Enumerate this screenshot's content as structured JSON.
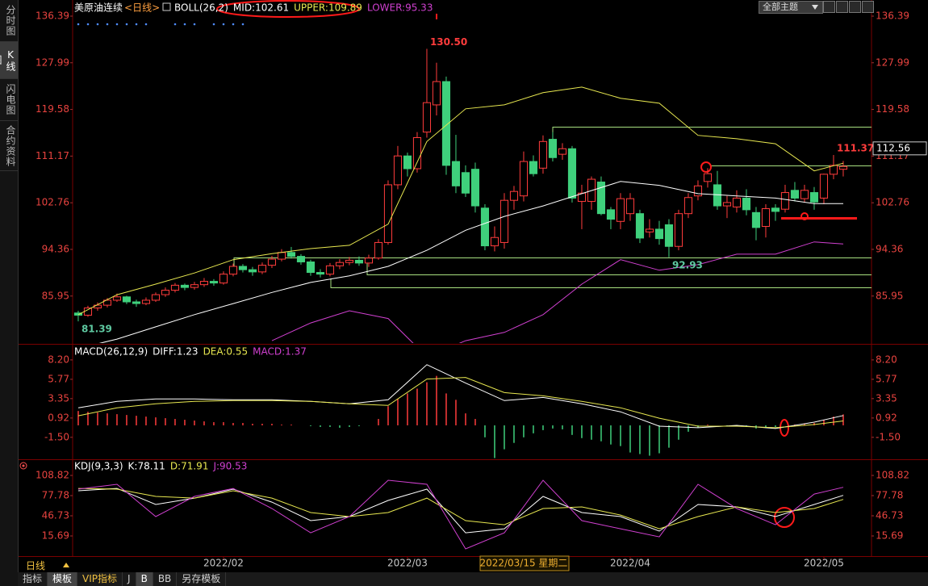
{
  "header": {
    "symbol": "美原油连续",
    "period": "<日线>",
    "theme_button": "全部主题"
  },
  "sidebar": [
    "分时图",
    "K线图",
    "闪电图",
    "合约资料"
  ],
  "footer": {
    "period": "日线",
    "tabs": [
      "指标",
      "模板",
      "VIP指标",
      "J",
      "B",
      "BB",
      "另存模板"
    ]
  },
  "chart_data": [
    {
      "type": "candlestick",
      "title": "BOLL(26,2)",
      "up_color": "#ff3c3c",
      "down_color": "#3fd07c",
      "xlim": [
        -0.58,
        81.92
      ],
      "xticks": [
        {
          "value": 15,
          "label": "2022/02"
        },
        {
          "value": 34,
          "label": "2022/03"
        },
        {
          "value": 57,
          "label": "2022/04"
        },
        {
          "value": 77,
          "label": "2022/05"
        }
      ],
      "cursor": {
        "x": 46,
        "label": "2022/03/15 星期二"
      },
      "ylim": [
        77.48,
        139.01
      ],
      "yticks": [
        136.39,
        127.99,
        119.58,
        111.17,
        102.76,
        94.36,
        85.95
      ],
      "last_price": 112.56,
      "ohlc": [
        [
          82.9,
          83.3,
          81.39,
          82.5
        ],
        [
          82.5,
          84.2,
          82.2,
          83.8
        ],
        [
          83.8,
          84.8,
          83.3,
          84.3
        ],
        [
          84.3,
          85.6,
          83.9,
          85.2
        ],
        [
          85.2,
          86.4,
          84.9,
          85.8
        ],
        [
          85.8,
          86.0,
          84.5,
          84.9
        ],
        [
          84.9,
          85.3,
          84.0,
          84.6
        ],
        [
          84.6,
          85.7,
          84.3,
          85.2
        ],
        [
          85.2,
          86.6,
          84.9,
          86.2
        ],
        [
          86.2,
          87.5,
          85.8,
          87.0
        ],
        [
          87.0,
          88.3,
          86.6,
          87.9
        ],
        [
          87.9,
          88.2,
          87.0,
          87.5
        ],
        [
          87.5,
          88.5,
          87.1,
          88.0
        ],
        [
          88.0,
          89.2,
          87.6,
          88.6
        ],
        [
          88.6,
          89.0,
          87.8,
          88.3
        ],
        [
          88.3,
          90.4,
          88.0,
          89.9
        ],
        [
          89.9,
          91.8,
          89.5,
          91.3
        ],
        [
          91.3,
          91.7,
          90.2,
          90.7
        ],
        [
          90.7,
          91.2,
          89.6,
          90.3
        ],
        [
          90.3,
          92.0,
          89.9,
          91.5
        ],
        [
          91.5,
          93.2,
          91.0,
          92.6
        ],
        [
          92.6,
          94.4,
          92.2,
          93.8
        ],
        [
          93.8,
          94.8,
          92.7,
          93.1
        ],
        [
          93.1,
          93.5,
          91.6,
          92.1
        ],
        [
          92.1,
          92.5,
          89.6,
          90.2
        ],
        [
          90.2,
          90.8,
          89.3,
          89.9
        ],
        [
          89.9,
          91.9,
          89.5,
          91.4
        ],
        [
          91.4,
          92.6,
          90.8,
          92.0
        ],
        [
          92.0,
          93.0,
          91.5,
          92.4
        ],
        [
          92.4,
          93.1,
          91.4,
          91.9
        ],
        [
          91.9,
          93.4,
          91.2,
          92.8
        ],
        [
          92.8,
          96.2,
          92.5,
          95.6
        ],
        [
          95.6,
          106.8,
          95.2,
          106.0
        ],
        [
          106.0,
          113.0,
          105.2,
          111.2
        ],
        [
          111.2,
          111.8,
          107.5,
          108.9
        ],
        [
          108.9,
          115.5,
          108.2,
          114.5
        ],
        [
          115.5,
          130.5,
          114.5,
          120.8
        ],
        [
          120.4,
          128.0,
          118.5,
          124.6
        ],
        [
          124.6,
          125.5,
          107.8,
          109.5
        ],
        [
          110.2,
          115.0,
          104.5,
          105.8
        ],
        [
          108.2,
          109.5,
          103.8,
          104.5
        ],
        [
          108.8,
          110.0,
          101.0,
          102.2
        ],
        [
          101.8,
          102.5,
          94.2,
          95.0
        ],
        [
          95.0,
          98.5,
          94.0,
          96.5
        ],
        [
          95.6,
          104.5,
          94.5,
          103.2
        ],
        [
          103.2,
          105.8,
          101.5,
          104.8
        ],
        [
          104.0,
          112.0,
          103.0,
          110.2
        ],
        [
          110.2,
          111.3,
          107.5,
          108.0
        ],
        [
          109.0,
          114.9,
          108.0,
          113.8
        ],
        [
          114.2,
          115.5,
          110.2,
          110.9
        ],
        [
          111.5,
          113.5,
          110.5,
          112.5
        ],
        [
          112.5,
          113.0,
          102.8,
          103.6
        ],
        [
          103.0,
          106.0,
          98.0,
          104.5
        ],
        [
          103.0,
          107.5,
          101.5,
          107.0
        ],
        [
          106.5,
          107.5,
          100.5,
          100.8
        ],
        [
          101.5,
          102.0,
          98.0,
          99.8
        ],
        [
          99.4,
          104.5,
          98.0,
          103.5
        ],
        [
          100.8,
          104.5,
          99.5,
          103.5
        ],
        [
          100.8,
          101.5,
          95.5,
          96.4
        ],
        [
          97.5,
          99.8,
          96.5,
          98.0
        ],
        [
          98.0,
          99.5,
          95.2,
          96.3
        ],
        [
          98.8,
          99.8,
          92.93,
          94.9
        ],
        [
          94.9,
          101.5,
          94.2,
          100.8
        ],
        [
          100.8,
          104.5,
          100.0,
          103.7
        ],
        [
          104.0,
          106.8,
          103.2,
          105.8
        ],
        [
          106.6,
          109.0,
          105.5,
          108.0
        ],
        [
          106.0,
          108.5,
          101.5,
          102.2
        ],
        [
          102.2,
          104.0,
          100.0,
          102.8
        ],
        [
          102.0,
          105.0,
          101.0,
          103.6
        ],
        [
          103.6,
          105.2,
          100.5,
          101.5
        ],
        [
          101.0,
          102.0,
          96.0,
          98.3
        ],
        [
          98.5,
          102.5,
          96.5,
          101.7
        ],
        [
          101.8,
          102.5,
          99.5,
          101.2
        ],
        [
          101.6,
          106.0,
          101.0,
          104.6
        ],
        [
          105.0,
          106.5,
          103.0,
          103.6
        ],
        [
          103.5,
          106.0,
          102.8,
          105.0
        ],
        [
          104.6,
          105.6,
          101.5,
          102.9
        ],
        [
          103.6,
          108.0,
          102.5,
          107.9
        ],
        [
          107.9,
          111.37,
          107.0,
          109.5
        ],
        [
          108.8,
          110.3,
          107.5,
          109.3
        ]
      ],
      "annotations": [
        {
          "x": 36,
          "at": "high",
          "label": "130.50",
          "color": "#ff3c3c"
        },
        {
          "x": 0,
          "at": "low",
          "label": "81.39",
          "color": "#5ec8a0"
        },
        {
          "x": 61,
          "at": "low",
          "label": "92.93",
          "color": "#5ec8a0"
        },
        {
          "x": 78,
          "at": "high",
          "label": "111.37",
          "color": "#ff3c3c"
        }
      ],
      "series": [
        {
          "name": "MID:102.61",
          "color": "#ffffff",
          "x": [
            0,
            4,
            8,
            12,
            16,
            20,
            24,
            28,
            32,
            36,
            40,
            44,
            48,
            52,
            56,
            60,
            64,
            68,
            72,
            76,
            79
          ],
          "values": [
            76.5,
            78.2,
            80.4,
            82.6,
            84.6,
            86.6,
            88.4,
            89.6,
            91.3,
            94.2,
            97.8,
            100.3,
            102.2,
            104.4,
            106.6,
            105.9,
            104.4,
            104.0,
            103.6,
            102.6,
            102.61
          ]
        },
        {
          "name": "UPPER:109.89",
          "color": "#e8e850",
          "x": [
            0,
            4,
            8,
            12,
            16,
            20,
            24,
            28,
            32,
            36,
            40,
            44,
            48,
            52,
            56,
            60,
            64,
            68,
            72,
            76,
            79
          ],
          "values": [
            82.6,
            86.2,
            88.1,
            90.1,
            92.5,
            93.6,
            94.5,
            95.1,
            98.9,
            113.8,
            119.7,
            120.4,
            122.6,
            123.6,
            121.6,
            120.7,
            114.9,
            114.3,
            113.4,
            108.5,
            109.89
          ]
        },
        {
          "name": "LOWER:95.33",
          "color": "#d040d0",
          "x": [
            0,
            4,
            8,
            12,
            16,
            20,
            24,
            28,
            32,
            36,
            40,
            44,
            48,
            52,
            56,
            60,
            64,
            68,
            72,
            76,
            79
          ],
          "values": [
            null,
            null,
            null,
            null,
            null,
            77.9,
            81.1,
            83.3,
            81.9,
            75.0,
            77.9,
            79.4,
            82.6,
            88.1,
            92.5,
            90.6,
            91.6,
            93.5,
            93.5,
            95.7,
            95.33
          ]
        }
      ]
    },
    {
      "type": "macd",
      "title": "MACD(26,12,9)",
      "up_color": "#ff3c3c",
      "down_color": "#3fd07c",
      "ylim": [
        -4.15,
        10.01
      ],
      "yticks": [
        {
          "value": 8.2,
          "label": "8.20"
        },
        5.77,
        3.35,
        0.92,
        {
          "value": -1.5,
          "label": "-1.50"
        }
      ],
      "series": [
        {
          "name": "DIFF:1.23",
          "color": "#ffffff",
          "x": [
            0,
            4,
            8,
            12,
            16,
            20,
            24,
            28,
            32,
            36,
            40,
            44,
            48,
            52,
            56,
            60,
            64,
            68,
            72,
            76,
            79
          ],
          "values": [
            2.2,
            3.0,
            3.3,
            3.3,
            3.2,
            3.2,
            3.0,
            2.7,
            3.2,
            7.6,
            5.3,
            3.1,
            3.5,
            2.7,
            1.7,
            -0.1,
            -0.3,
            0.0,
            -0.4,
            0.4,
            1.23
          ]
        },
        {
          "name": "DEA:0.55",
          "color": "#e8e850",
          "x": [
            0,
            4,
            8,
            12,
            16,
            20,
            24,
            28,
            32,
            36,
            40,
            44,
            48,
            52,
            56,
            60,
            64,
            68,
            72,
            76,
            79
          ],
          "values": [
            1.2,
            2.2,
            2.7,
            3.0,
            3.1,
            3.1,
            3.0,
            2.7,
            2.5,
            5.8,
            6.0,
            4.1,
            3.7,
            3.0,
            2.2,
            0.9,
            -0.1,
            -0.1,
            -0.3,
            0.1,
            0.55
          ]
        }
      ],
      "bars": {
        "name": "MACD:1.37",
        "color": "#d040d0",
        "values": [
          1.8,
          1.7,
          1.6,
          1.5,
          1.4,
          1.3,
          1.2,
          1.1,
          1.0,
          0.9,
          0.8,
          0.7,
          0.6,
          0.5,
          0.4,
          0.4,
          0.3,
          0.3,
          0.2,
          0.2,
          0.2,
          0.1,
          0.1,
          0.0,
          -0.1,
          -0.2,
          -0.2,
          -0.3,
          -0.2,
          -0.1,
          0.0,
          0.8,
          2.4,
          3.3,
          4.0,
          4.6,
          5.4,
          6.2,
          4.0,
          3.2,
          1.5,
          0.8,
          -1.5,
          -4.1,
          -3.0,
          -2.2,
          -1.5,
          -1.0,
          -0.6,
          -0.4,
          -0.5,
          -1.2,
          -1.6,
          -1.8,
          -2.0,
          -2.4,
          -2.6,
          -3.4,
          -3.6,
          -3.8,
          -3.5,
          -2.8,
          -1.8,
          -0.8,
          -0.3,
          0.1,
          0.0,
          -0.1,
          -0.1,
          -0.2,
          -0.4,
          -0.3,
          -0.2,
          0.0,
          0.1,
          0.2,
          0.3,
          0.7,
          1.1,
          1.37
        ]
      }
    },
    {
      "type": "kdj",
      "title": "KDJ(9,3,3)",
      "ylim": [
        -14.1,
        131.2
      ],
      "yticks": [
        108.82,
        77.78,
        46.73,
        15.69
      ],
      "series": [
        {
          "name": "K:78.11",
          "color": "#ffffff",
          "x": [
            0,
            4,
            8,
            12,
            16,
            20,
            24,
            28,
            32,
            36,
            40,
            44,
            48,
            52,
            56,
            60,
            64,
            68,
            72,
            76,
            79
          ],
          "values": [
            85.2,
            88.9,
            64.1,
            74.0,
            87.7,
            67.8,
            39.3,
            45.5,
            70.3,
            87.7,
            20.6,
            26.8,
            76.5,
            51.7,
            45.5,
            23.1,
            64.1,
            60.4,
            45.5,
            64.1,
            78.11
          ]
        },
        {
          "name": "D:71.91",
          "color": "#e8e850",
          "x": [
            0,
            4,
            8,
            12,
            16,
            20,
            24,
            28,
            32,
            36,
            40,
            44,
            48,
            52,
            56,
            60,
            64,
            68,
            72,
            76,
            79
          ],
          "values": [
            88.9,
            87.7,
            76.5,
            74.0,
            85.2,
            74.0,
            51.7,
            45.5,
            51.7,
            74.0,
            39.3,
            33.0,
            57.9,
            60.4,
            47.9,
            26.8,
            45.5,
            60.4,
            51.7,
            57.9,
            71.91
          ]
        },
        {
          "name": "J:90.53",
          "color": "#d040d0",
          "x": [
            0,
            4,
            8,
            12,
            16,
            20,
            24,
            28,
            32,
            36,
            40,
            44,
            48,
            52,
            56,
            60,
            64,
            68,
            72,
            76,
            79
          ],
          "values": [
            87.7,
            95.2,
            45.5,
            76.5,
            88.9,
            57.9,
            20.6,
            45.5,
            101.4,
            95.2,
            -4.2,
            20.6,
            101.4,
            39.3,
            26.8,
            14.4,
            95.2,
            57.9,
            33.0,
            80.2,
            90.53
          ]
        }
      ]
    }
  ]
}
